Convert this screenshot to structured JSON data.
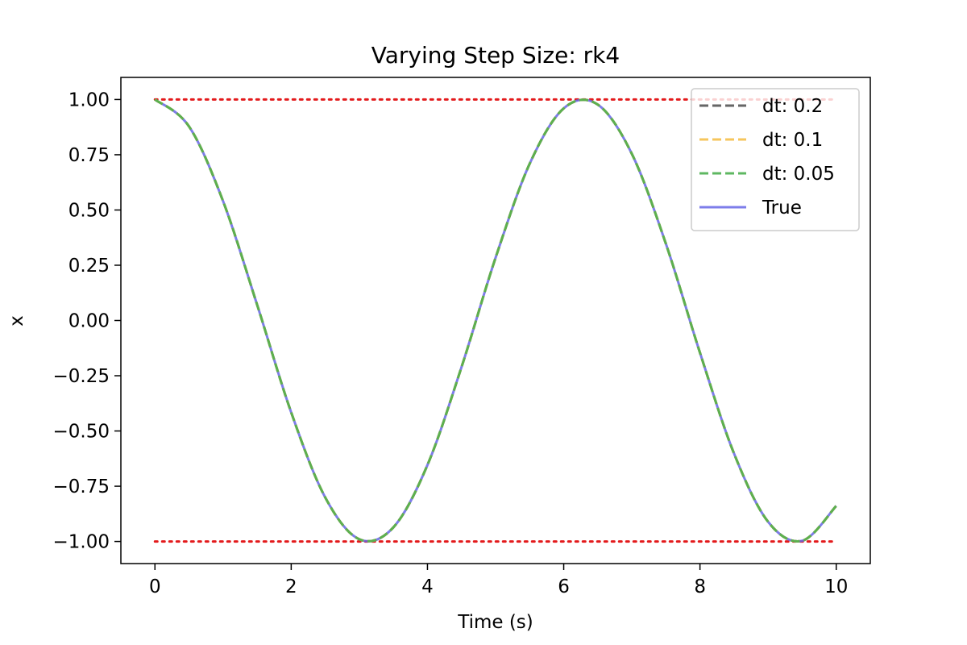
{
  "chart_data": {
    "type": "line",
    "title": "Varying Step Size: rk4",
    "xlabel": "Time (s)",
    "ylabel": "x",
    "xlim": [
      -0.5,
      10.5
    ],
    "ylim": [
      -1.1,
      1.1
    ],
    "x_ticks": [
      0,
      2,
      4,
      6,
      8,
      10
    ],
    "x_tick_labels": [
      "0",
      "2",
      "4",
      "6",
      "8",
      "10"
    ],
    "y_ticks": [
      1.0,
      0.75,
      0.5,
      0.25,
      0.0,
      -0.25,
      -0.5,
      -0.75,
      -1.0
    ],
    "y_tick_labels": [
      "1.00",
      "0.75",
      "0.50",
      "0.25",
      "0.00",
      "−0.25",
      "−0.50",
      "−0.75",
      "−1.00"
    ],
    "grid": false,
    "legend_position": "top-right",
    "series": [
      {
        "name": "dt: 0.2",
        "color": "#555555",
        "style": "dashed",
        "x": [
          0,
          0.5,
          1,
          1.5,
          2,
          2.5,
          3,
          3.5,
          4,
          4.5,
          5,
          5.5,
          6,
          6.5,
          7,
          7.5,
          8,
          8.5,
          9,
          9.5,
          10
        ],
        "y": [
          1.0,
          0.878,
          0.54,
          0.071,
          -0.416,
          -0.801,
          -0.99,
          -0.936,
          -0.654,
          -0.211,
          0.284,
          0.709,
          0.96,
          0.977,
          0.754,
          0.347,
          -0.146,
          -0.602,
          -0.911,
          -0.997,
          -0.839
        ]
      },
      {
        "name": "dt: 0.1",
        "color": "#f5c04a",
        "style": "dashed",
        "x": [
          0,
          0.5,
          1,
          1.5,
          2,
          2.5,
          3,
          3.5,
          4,
          4.5,
          5,
          5.5,
          6,
          6.5,
          7,
          7.5,
          8,
          8.5,
          9,
          9.5,
          10
        ],
        "y": [
          1.0,
          0.878,
          0.54,
          0.071,
          -0.416,
          -0.801,
          -0.99,
          -0.936,
          -0.654,
          -0.211,
          0.284,
          0.709,
          0.96,
          0.977,
          0.754,
          0.347,
          -0.146,
          -0.602,
          -0.911,
          -0.997,
          -0.839
        ]
      },
      {
        "name": "dt: 0.05",
        "color": "#4caf50",
        "style": "dashed",
        "x": [
          0,
          0.5,
          1,
          1.5,
          2,
          2.5,
          3,
          3.5,
          4,
          4.5,
          5,
          5.5,
          6,
          6.5,
          7,
          7.5,
          8,
          8.5,
          9,
          9.5,
          10
        ],
        "y": [
          1.0,
          0.878,
          0.54,
          0.071,
          -0.416,
          -0.801,
          -0.99,
          -0.936,
          -0.654,
          -0.211,
          0.284,
          0.709,
          0.96,
          0.977,
          0.754,
          0.347,
          -0.146,
          -0.602,
          -0.911,
          -0.997,
          -0.839
        ]
      },
      {
        "name": "True",
        "color": "#6666e6",
        "style": "solid",
        "x": [
          0,
          0.5,
          1,
          1.5,
          2,
          2.5,
          3,
          3.5,
          4,
          4.5,
          5,
          5.5,
          6,
          6.5,
          7,
          7.5,
          8,
          8.5,
          9,
          9.5,
          10
        ],
        "y": [
          1.0,
          0.878,
          0.54,
          0.071,
          -0.416,
          -0.801,
          -0.99,
          -0.936,
          -0.654,
          -0.211,
          0.284,
          0.709,
          0.96,
          0.977,
          0.754,
          0.347,
          -0.146,
          -0.602,
          -0.911,
          -0.997,
          -0.839
        ]
      }
    ],
    "reference_lines": [
      {
        "y": 1.0,
        "x_range": [
          0,
          10
        ],
        "color": "#e31a1c",
        "style": "dotted"
      },
      {
        "y": -1.0,
        "x_range": [
          0,
          10
        ],
        "color": "#e31a1c",
        "style": "dotted"
      }
    ]
  }
}
